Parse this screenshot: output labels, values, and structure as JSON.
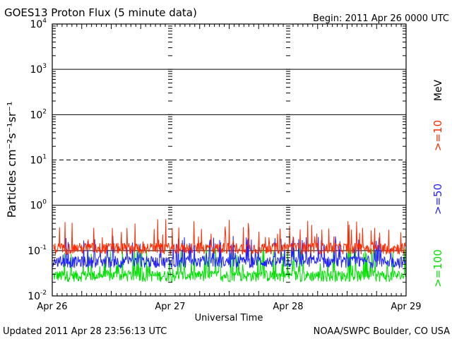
{
  "chart_data": {
    "type": "line",
    "title": "GOES13 Proton Flux (5 minute data)",
    "begin_label": "Begin: 2011 Apr 26 0000 UTC",
    "xlabel": "Universal Time",
    "ylabel": "Particles cm⁻²s⁻¹sr⁻¹",
    "y_scale": "log",
    "ylim": [
      0.01,
      10000
    ],
    "y_ticks": [
      {
        "value": 10000,
        "base": "10",
        "exp": "4"
      },
      {
        "value": 1000,
        "base": "10",
        "exp": "3"
      },
      {
        "value": 100,
        "base": "10",
        "exp": "2"
      },
      {
        "value": 10,
        "base": "10",
        "exp": "1"
      },
      {
        "value": 1,
        "base": "10",
        "exp": "0"
      },
      {
        "value": 0.1,
        "base": "10",
        "exp": "-1"
      },
      {
        "value": 0.01,
        "base": "10",
        "exp": "-2"
      }
    ],
    "x_ticks": [
      "Apr 26",
      "Apr 27",
      "Apr 28",
      "Apr 29"
    ],
    "xlim": [
      "2011-04-26T00:00Z",
      "2011-04-29T00:00Z"
    ],
    "thresholds": [
      {
        "value": 10,
        "style": "dashed"
      }
    ],
    "unit_label": "MeV",
    "series": [
      {
        "name": ">=10",
        "color": "#ff2a00",
        "baseline": 0.11,
        "spread": 0.22
      },
      {
        "name": ">=50",
        "color": "#1f1fff",
        "baseline": 0.055,
        "spread": 0.09
      },
      {
        "name": ">=100",
        "color": "#00e000",
        "baseline": 0.027,
        "spread": 0.06
      }
    ]
  },
  "footer": {
    "updated": "Updated 2011 Apr 28 23:56:13 UTC",
    "credit": "NOAA/SWPC Boulder, CO USA"
  }
}
